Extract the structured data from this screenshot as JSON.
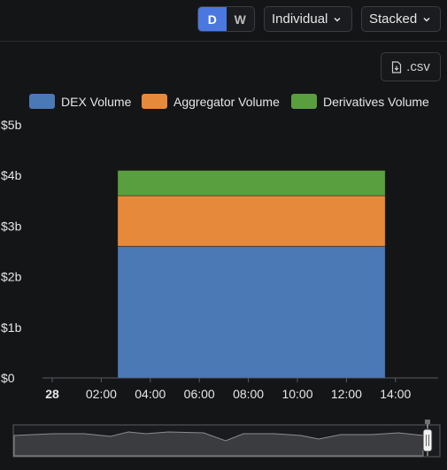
{
  "controls": {
    "period_day": "D",
    "period_week": "W",
    "mode": "Individual",
    "layout": "Stacked",
    "csv_label": ".csv"
  },
  "colors": {
    "dex": "#4a79b6",
    "aggregator": "#e7893b",
    "derivatives": "#5a9f3f",
    "accent": "#4a78e0"
  },
  "chart_data": {
    "type": "bar",
    "stacked": true,
    "x_tick_labels": [
      "28",
      "02:00",
      "04:00",
      "06:00",
      "08:00",
      "10:00",
      "12:00",
      "14:00"
    ],
    "bar": {
      "start": "02:40",
      "end": "13:35"
    },
    "series": [
      {
        "name": "DEX Volume",
        "values": [
          2.6
        ]
      },
      {
        "name": "Aggregator Volume",
        "values": [
          1.0
        ]
      },
      {
        "name": "Derivatives Volume",
        "values": [
          0.5
        ]
      }
    ],
    "y_tick_labels": [
      "$0",
      "$1b",
      "$2b",
      "$3b",
      "$4b",
      "$5b"
    ],
    "ylim": [
      0,
      5
    ],
    "legend_position": "top",
    "grid": false
  }
}
